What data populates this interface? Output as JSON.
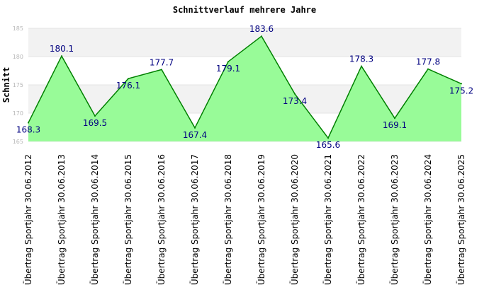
{
  "chart_data": {
    "type": "area",
    "title": "Schnittverlauf mehrere Jahre",
    "ylabel": "Schnitt",
    "xlabel": "",
    "ylim": [
      165,
      185
    ],
    "yticks": [
      "165",
      "170",
      "175",
      "180",
      "185"
    ],
    "grid": "horizontal bands",
    "legend": "none",
    "categories": [
      "Übertrag Sportjahr 30.06.2012",
      "Übertrag Sportjahr 30.06.2013",
      "Übertrag Sportjahr 30.06.2014",
      "Übertrag Sportjahr 30.06.2015",
      "Übertrag Sportjahr 30.06.2016",
      "Übertrag Sportjahr 30.06.2017",
      "Übertrag Sportjahr 30.06.2018",
      "Übertrag Sportjahr 30.06.2019",
      "Übertrag Sportjahr 30.06.2020",
      "Übertrag Sportjahr 30.06.2021",
      "Übertrag Sportjahr 30.06.2022",
      "Übertrag Sportjahr 30.06.2023",
      "Übertrag Sportjahr 30.06.2024",
      "Übertrag Sportjahr 30.06.2025"
    ],
    "values": [
      168.3,
      180.1,
      169.5,
      176.1,
      177.7,
      167.4,
      179.1,
      183.6,
      173.4,
      165.6,
      178.3,
      169.1,
      177.8,
      175.2
    ],
    "labels": [
      "168.3",
      "180.1",
      "169.5",
      "176.1",
      "177.7",
      "167.4",
      "179.1",
      "183.6",
      "173.4",
      "165.6",
      "178.3",
      "169.1",
      "177.8",
      "175.2"
    ],
    "colors": {
      "fill": "#98fb98",
      "line": "#008000",
      "band_a": "#f2f2f2",
      "band_b": "#ffffff",
      "data_label": "#000080"
    }
  }
}
